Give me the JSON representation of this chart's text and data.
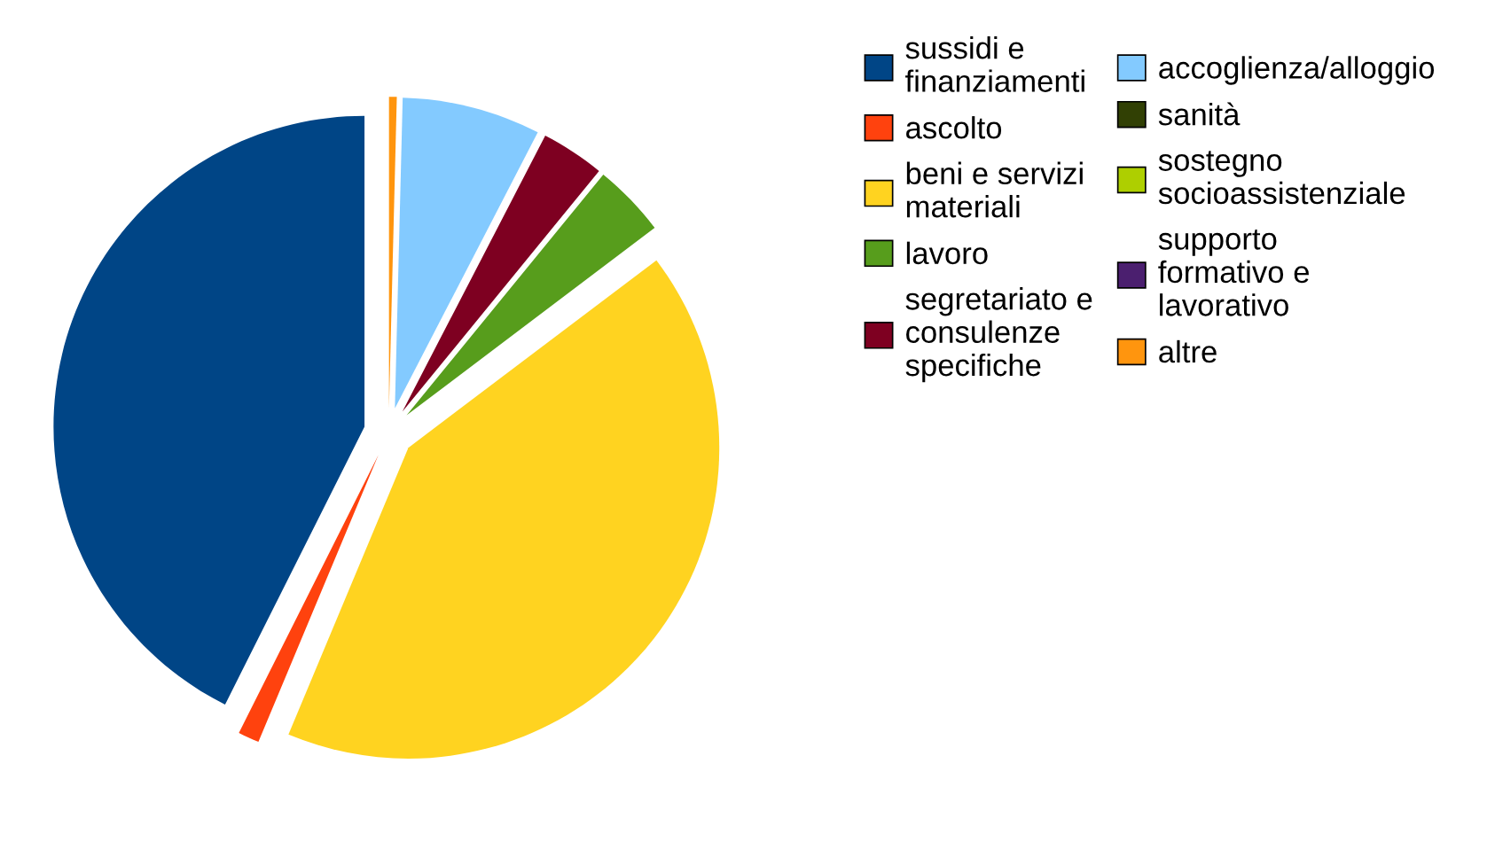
{
  "chart_data": {
    "type": "pie",
    "categories": [
      "sussidi e finanziamenti",
      "ascolto",
      "beni e servizi materiali",
      "lavoro",
      "segretariato e consulenze specifiche",
      "accoglienza/alloggio",
      "sanità",
      "sostegno socioassistenziale",
      "supporto formativo e lavorativo",
      "altre"
    ],
    "values": [
      42.6,
      1.1,
      41.6,
      3.8,
      3.3,
      7.2,
      0,
      0,
      0,
      0.4
    ],
    "colors": [
      "#004586",
      "#ff420e",
      "#ffd320",
      "#579d1c",
      "#7e0021",
      "#83caff",
      "#314004",
      "#aecf00",
      "#4b1f6f",
      "#ff950e"
    ],
    "legend": "right"
  }
}
